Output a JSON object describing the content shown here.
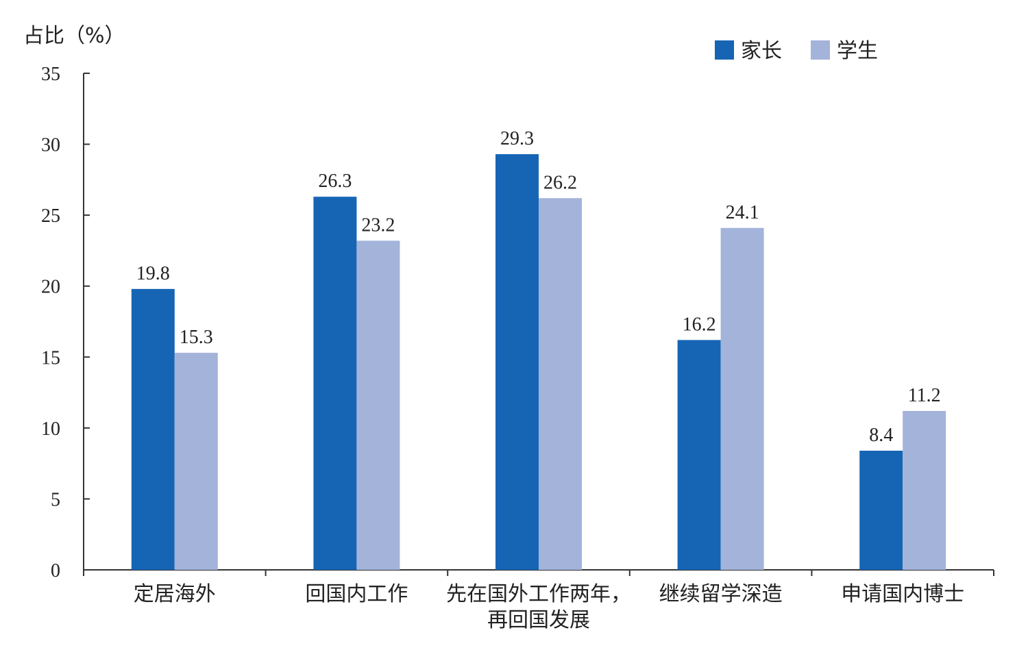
{
  "chart_data": {
    "type": "bar",
    "title": "",
    "xlabel": "",
    "ylabel": "占比（%）",
    "ylim": [
      0,
      35
    ],
    "yticks": [
      0,
      5,
      10,
      15,
      20,
      25,
      30,
      35
    ],
    "grid": false,
    "legend_position": "top-right",
    "categories": [
      [
        "定居海外"
      ],
      [
        "回国内工作"
      ],
      [
        "先在国外工作两年，",
        "再回国发展"
      ],
      [
        "继续留学深造"
      ],
      [
        "申请国内博士"
      ]
    ],
    "series": [
      {
        "name": "家长",
        "color": "#1665b5",
        "values": [
          19.8,
          26.3,
          29.3,
          16.2,
          8.4
        ]
      },
      {
        "name": "学生",
        "color": "#a3b3da",
        "values": [
          15.3,
          23.2,
          26.2,
          24.1,
          11.2
        ]
      }
    ]
  }
}
